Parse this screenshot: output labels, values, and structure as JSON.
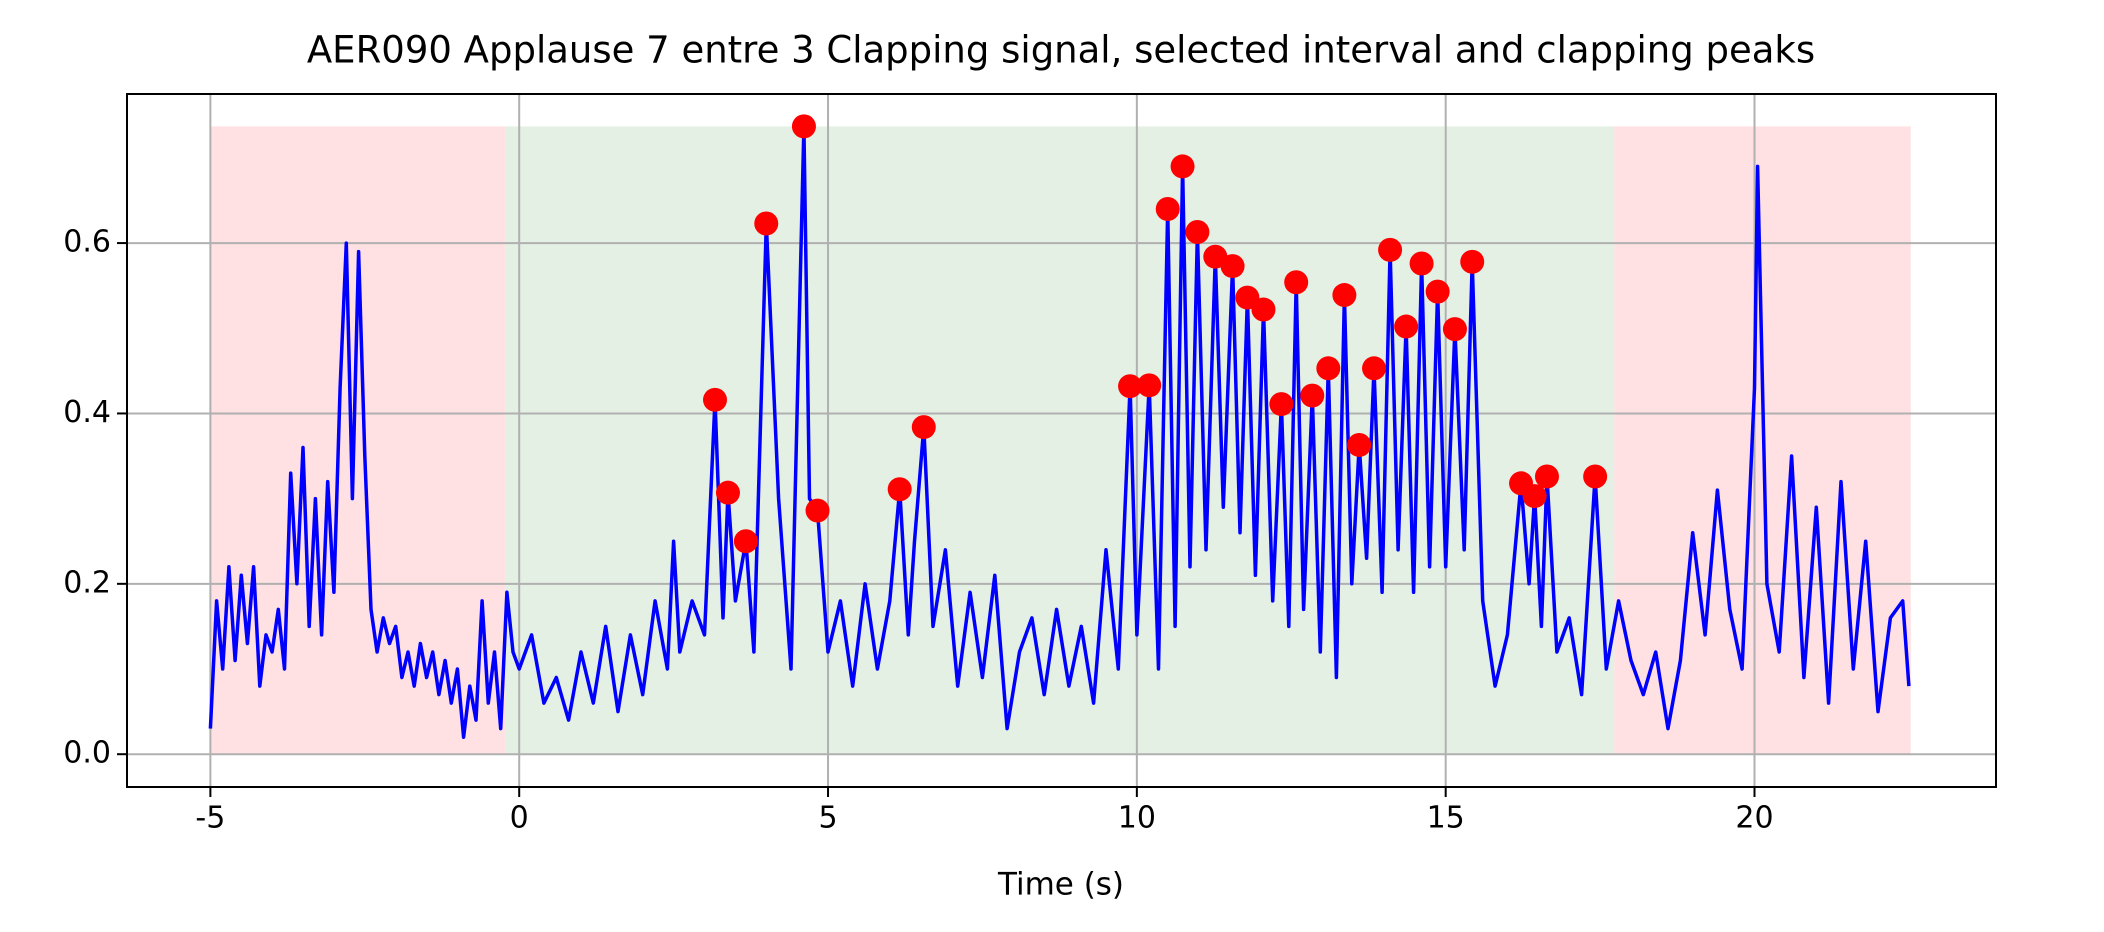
{
  "chart_data": {
    "type": "line",
    "title": "AER090 Applause 7 entre 3 Clapping signal, selected interval and clapping peaks",
    "xlabel": "Time (s)",
    "xlim": [
      -6.35,
      23.91
    ],
    "ylim": [
      -0.0385,
      0.775
    ],
    "xticks": [
      -5,
      0,
      5,
      10,
      15,
      20
    ],
    "yticks": [
      {
        "value": 0,
        "label": "0.0"
      },
      0.2,
      0.4,
      0.6
    ],
    "grid": true,
    "spans": [
      {
        "start": -5,
        "end": -0.22,
        "ymax": 0.737,
        "color": "#ffe0e3"
      },
      {
        "start": -0.22,
        "end": 17.73,
        "ymax": 0.737,
        "color": "#e5f0e4"
      },
      {
        "start": 17.73,
        "end": 22.53,
        "ymax": 0.737,
        "color": "#ffe0e3"
      }
    ],
    "series": [
      {
        "type": "line",
        "color": "#0000ff",
        "x": [
          -5.0,
          -4.9,
          -4.8,
          -4.7,
          -4.6,
          -4.5,
          -4.4,
          -4.3,
          -4.2,
          -4.1,
          -4.0,
          -3.9,
          -3.8,
          -3.7,
          -3.6,
          -3.5,
          -3.4,
          -3.3,
          -3.2,
          -3.1,
          -3.0,
          -2.9,
          -2.8,
          -2.7,
          -2.6,
          -2.5,
          -2.4,
          -2.3,
          -2.2,
          -2.1,
          -2.0,
          -1.9,
          -1.8,
          -1.7,
          -1.6,
          -1.5,
          -1.4,
          -1.3,
          -1.2,
          -1.1,
          -1.0,
          -0.9,
          -0.8,
          -0.7,
          -0.6,
          -0.5,
          -0.4,
          -0.3,
          -0.2,
          -0.1,
          0.0,
          0.2,
          0.4,
          0.6,
          0.8,
          1.0,
          1.2,
          1.4,
          1.6,
          1.8,
          2.0,
          2.2,
          2.4,
          2.5,
          2.6,
          2.8,
          3.0,
          3.17,
          3.3,
          3.38,
          3.5,
          3.67,
          3.8,
          4.0,
          4.2,
          4.4,
          4.61,
          4.7,
          4.83,
          5.0,
          5.2,
          5.4,
          5.6,
          5.8,
          6.0,
          6.16,
          6.3,
          6.4,
          6.55,
          6.7,
          6.9,
          7.1,
          7.3,
          7.5,
          7.7,
          7.9,
          8.1,
          8.3,
          8.5,
          8.7,
          8.9,
          9.1,
          9.3,
          9.5,
          9.7,
          9.89,
          10.0,
          10.2,
          10.35,
          10.5,
          10.62,
          10.74,
          10.86,
          10.98,
          11.12,
          11.27,
          11.4,
          11.55,
          11.67,
          11.79,
          11.92,
          12.05,
          12.2,
          12.34,
          12.46,
          12.58,
          12.7,
          12.84,
          12.97,
          13.1,
          13.23,
          13.36,
          13.48,
          13.6,
          13.72,
          13.84,
          13.97,
          14.1,
          14.23,
          14.36,
          14.48,
          14.61,
          14.74,
          14.87,
          15.0,
          15.15,
          15.3,
          15.43,
          15.6,
          15.8,
          16.0,
          16.22,
          16.35,
          16.44,
          16.55,
          16.64,
          16.8,
          17.0,
          17.2,
          17.42,
          17.6,
          17.8,
          18.0,
          18.2,
          18.4,
          18.6,
          18.8,
          19.0,
          19.2,
          19.4,
          19.6,
          19.8,
          20.0,
          20.05,
          20.2,
          20.4,
          20.6,
          20.8,
          21.0,
          21.2,
          21.4,
          21.6,
          21.8,
          22.0,
          22.2,
          22.4,
          22.5
        ],
        "values": [
          0.03,
          0.18,
          0.1,
          0.22,
          0.11,
          0.21,
          0.13,
          0.22,
          0.08,
          0.14,
          0.12,
          0.17,
          0.1,
          0.33,
          0.2,
          0.36,
          0.15,
          0.3,
          0.14,
          0.32,
          0.19,
          0.43,
          0.6,
          0.3,
          0.59,
          0.35,
          0.17,
          0.12,
          0.16,
          0.13,
          0.15,
          0.09,
          0.12,
          0.08,
          0.13,
          0.09,
          0.12,
          0.07,
          0.11,
          0.06,
          0.1,
          0.02,
          0.08,
          0.04,
          0.18,
          0.06,
          0.12,
          0.03,
          0.19,
          0.12,
          0.1,
          0.14,
          0.06,
          0.09,
          0.04,
          0.12,
          0.06,
          0.15,
          0.05,
          0.14,
          0.07,
          0.18,
          0.1,
          0.25,
          0.12,
          0.18,
          0.14,
          0.416,
          0.16,
          0.307,
          0.18,
          0.25,
          0.12,
          0.623,
          0.3,
          0.1,
          0.737,
          0.3,
          0.286,
          0.12,
          0.18,
          0.08,
          0.2,
          0.1,
          0.18,
          0.311,
          0.14,
          0.25,
          0.384,
          0.15,
          0.24,
          0.08,
          0.19,
          0.09,
          0.21,
          0.03,
          0.12,
          0.16,
          0.07,
          0.17,
          0.08,
          0.15,
          0.06,
          0.24,
          0.1,
          0.432,
          0.14,
          0.433,
          0.1,
          0.64,
          0.15,
          0.69,
          0.22,
          0.613,
          0.24,
          0.584,
          0.29,
          0.573,
          0.26,
          0.536,
          0.21,
          0.522,
          0.18,
          0.411,
          0.15,
          0.554,
          0.17,
          0.421,
          0.12,
          0.453,
          0.09,
          0.539,
          0.2,
          0.363,
          0.23,
          0.453,
          0.19,
          0.592,
          0.24,
          0.502,
          0.19,
          0.576,
          0.22,
          0.543,
          0.22,
          0.499,
          0.24,
          0.578,
          0.18,
          0.08,
          0.14,
          0.318,
          0.2,
          0.303,
          0.15,
          0.326,
          0.12,
          0.16,
          0.07,
          0.326,
          0.1,
          0.18,
          0.11,
          0.07,
          0.12,
          0.03,
          0.11,
          0.26,
          0.14,
          0.31,
          0.17,
          0.1,
          0.43,
          0.69,
          0.2,
          0.12,
          0.35,
          0.09,
          0.29,
          0.06,
          0.32,
          0.1,
          0.25,
          0.05,
          0.16,
          0.18,
          0.08
        ]
      },
      {
        "type": "scatter",
        "color": "#ff0000",
        "x": [
          3.17,
          3.38,
          3.67,
          4.0,
          4.61,
          4.83,
          6.16,
          6.55,
          9.89,
          10.2,
          10.5,
          10.74,
          10.98,
          11.27,
          11.55,
          11.79,
          12.05,
          12.34,
          12.58,
          12.84,
          13.1,
          13.36,
          13.6,
          13.84,
          14.1,
          14.36,
          14.61,
          14.87,
          15.15,
          15.43,
          16.22,
          16.44,
          16.64,
          17.42
        ],
        "values": [
          0.416,
          0.307,
          0.25,
          0.623,
          0.737,
          0.286,
          0.311,
          0.384,
          0.432,
          0.433,
          0.64,
          0.69,
          0.613,
          0.584,
          0.573,
          0.536,
          0.522,
          0.411,
          0.554,
          0.421,
          0.453,
          0.539,
          0.363,
          0.453,
          0.592,
          0.502,
          0.576,
          0.543,
          0.499,
          0.578,
          0.318,
          0.303,
          0.326,
          0.326
        ]
      }
    ]
  }
}
